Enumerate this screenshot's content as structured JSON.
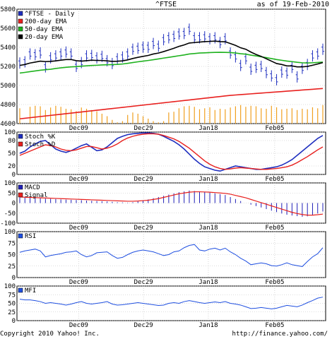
{
  "header": {
    "symbol_title": "^FTSE",
    "as_of": "as of 19-Feb-2010"
  },
  "footer": {
    "copyright": "Copyright 2010 Yahoo! Inc.",
    "url": "http://finance.yahoo.com/"
  },
  "colors": {
    "price": "#1f2fbf",
    "ema200": "#e8201e",
    "ema50": "#1fb21f",
    "ema20": "#000000",
    "volume": "#f0a020",
    "stoch_k": "#1f2fbf",
    "stoch_d": "#e8201e",
    "macd_bar": "#2020b8",
    "macd_signal": "#e8201e",
    "rsi": "#1f4fe0",
    "mfi": "#1f4fe0"
  },
  "date_labels": [
    "Dec09",
    "Dec29",
    "Jan18",
    "Feb05"
  ],
  "chart_data": [
    {
      "type": "line",
      "title": "^FTSE",
      "series": [
        {
          "name": "^FTSE - Daily",
          "values": [
            5235,
            5248,
            5330,
            5322,
            5341,
            5195,
            5290,
            5310,
            5330,
            5350,
            5330,
            5200,
            5240,
            5310,
            5315,
            5290,
            5305,
            5260,
            5230,
            5280,
            5298,
            5330,
            5380,
            5390,
            5402,
            5400,
            5440,
            5412,
            5480,
            5500,
            5515,
            5540,
            5545,
            5590,
            5500,
            5500,
            5510,
            5490,
            5500,
            5450,
            5490,
            5340,
            5300,
            5210,
            5280,
            5170,
            5190,
            5200,
            5135,
            5100,
            5060,
            5140,
            5130,
            5190,
            5090,
            5180,
            5220,
            5310,
            5330,
            5380
          ]
        },
        {
          "name": "200-day EMA",
          "values": [
            4650,
            4656,
            4662,
            4668,
            4674,
            4680,
            4686,
            4692,
            4698,
            4704,
            4710,
            4716,
            4722,
            4728,
            4734,
            4740,
            4746,
            4752,
            4758,
            4764,
            4770,
            4776,
            4782,
            4788,
            4794,
            4800,
            4806,
            4812,
            4818,
            4824,
            4830,
            4836,
            4842,
            4848,
            4854,
            4860,
            4866,
            4872,
            4878,
            4884,
            4890,
            4896,
            4900,
            4904,
            4908,
            4912,
            4916,
            4920,
            4924,
            4928,
            4932,
            4936,
            4940,
            4944,
            4948,
            4952,
            4956,
            4960,
            4964,
            4968
          ]
        },
        {
          "name": "50-day EMA",
          "values": [
            5130,
            5137,
            5145,
            5152,
            5160,
            5165,
            5170,
            5178,
            5185,
            5190,
            5195,
            5198,
            5202,
            5206,
            5210,
            5212,
            5215,
            5217,
            5219,
            5221,
            5225,
            5232,
            5240,
            5248,
            5255,
            5262,
            5270,
            5278,
            5287,
            5295,
            5303,
            5312,
            5320,
            5330,
            5335,
            5340,
            5342,
            5345,
            5347,
            5348,
            5347,
            5345,
            5340,
            5333,
            5328,
            5318,
            5310,
            5300,
            5292,
            5282,
            5272,
            5264,
            5256,
            5250,
            5243,
            5238,
            5236,
            5238,
            5241,
            5245
          ]
        },
        {
          "name": "20-day EMA",
          "values": [
            5210,
            5220,
            5235,
            5245,
            5255,
            5250,
            5252,
            5258,
            5265,
            5272,
            5272,
            5260,
            5255,
            5260,
            5265,
            5262,
            5262,
            5258,
            5252,
            5254,
            5258,
            5268,
            5283,
            5295,
            5305,
            5315,
            5330,
            5340,
            5355,
            5372,
            5390,
            5410,
            5425,
            5445,
            5450,
            5455,
            5460,
            5462,
            5465,
            5460,
            5458,
            5440,
            5420,
            5395,
            5380,
            5350,
            5325,
            5305,
            5280,
            5255,
            5230,
            5220,
            5205,
            5205,
            5195,
            5195,
            5200,
            5212,
            5225,
            5240
          ]
        }
      ],
      "volume": [
        0.62,
        0.0,
        0.68,
        0.72,
        0.7,
        0.55,
        0.65,
        0.72,
        0.68,
        0.6,
        0.58,
        0.5,
        0.65,
        0.6,
        0.55,
        0.5,
        0.4,
        0.3,
        0.15,
        0.05,
        0.1,
        0.35,
        0.45,
        0.4,
        0.3,
        0.2,
        0.1,
        0.05,
        0.1,
        0.45,
        0.48,
        0.62,
        0.7,
        0.72,
        0.68,
        0.58,
        0.62,
        0.66,
        0.55,
        0.6,
        0.58,
        0.65,
        0.7,
        0.75,
        0.68,
        0.72,
        0.7,
        0.62,
        0.6,
        0.72,
        0.66,
        0.58,
        0.6,
        0.62,
        0.55,
        0.6,
        0.58,
        0.66,
        0.62,
        0.75
      ],
      "ylim": [
        4600,
        5800
      ],
      "yticks": [
        4600,
        4800,
        5000,
        5200,
        5400,
        5600,
        5800
      ],
      "grid": true,
      "legend": "top-left"
    },
    {
      "type": "line",
      "series": [
        {
          "name": "Stoch %K",
          "values": [
            50,
            55,
            65,
            72,
            78,
            80,
            70,
            60,
            55,
            52,
            56,
            62,
            68,
            72,
            64,
            56,
            58,
            65,
            75,
            85,
            90,
            94,
            96,
            97,
            98,
            98,
            97,
            95,
            90,
            84,
            78,
            70,
            60,
            48,
            36,
            26,
            18,
            14,
            10,
            8,
            12,
            16,
            20,
            18,
            16,
            14,
            12,
            12,
            14,
            16,
            18,
            22,
            28,
            35,
            45,
            55,
            65,
            75,
            85,
            92
          ]
        },
        {
          "name": "Stoch %D",
          "values": [
            45,
            50,
            55,
            60,
            65,
            70,
            68,
            65,
            60,
            57,
            56,
            58,
            62,
            66,
            66,
            63,
            60,
            62,
            66,
            72,
            80,
            86,
            90,
            93,
            95,
            96,
            96,
            95,
            92,
            88,
            84,
            78,
            70,
            62,
            52,
            42,
            32,
            24,
            18,
            14,
            12,
            13,
            15,
            16,
            15,
            14,
            13,
            12,
            12,
            13,
            14,
            16,
            18,
            22,
            28,
            35,
            42,
            50,
            58,
            65
          ]
        }
      ],
      "ylim": [
        0,
        100
      ],
      "yticks": [
        0,
        20,
        50,
        80,
        100
      ],
      "grid": true,
      "legend": "top-left"
    },
    {
      "type": "line",
      "series": [
        {
          "name": "MACD",
          "values": [
            28,
            27,
            26,
            25,
            24,
            22,
            21,
            20,
            18,
            17,
            16,
            15,
            14,
            12,
            11,
            10,
            9,
            8,
            6,
            4,
            3,
            2,
            4,
            8,
            14,
            18,
            24,
            30,
            36,
            42,
            48,
            54,
            58,
            62,
            60,
            58,
            56,
            52,
            48,
            44,
            40,
            30,
            20,
            10,
            0,
            -8,
            -15,
            -22,
            -30,
            -38,
            -45,
            -52,
            -58,
            -62,
            -65,
            -68,
            -66,
            -60,
            -52,
            -42
          ]
        },
        {
          "name": "Signal",
          "values": [
            30,
            29,
            28,
            27,
            26,
            25,
            24,
            23,
            22,
            21,
            20,
            19,
            18,
            17,
            16,
            15,
            14,
            13,
            12,
            11,
            10,
            9,
            9,
            10,
            12,
            14,
            18,
            22,
            28,
            34,
            40,
            46,
            50,
            54,
            56,
            56,
            55,
            54,
            52,
            50,
            48,
            44,
            38,
            32,
            26,
            18,
            10,
            2,
            -6,
            -14,
            -22,
            -30,
            -38,
            -46,
            -52,
            -57,
            -60,
            -60,
            -58,
            -55
          ]
        }
      ],
      "ylim": [
        -100,
        100
      ],
      "yticks": [
        -100,
        -50,
        0,
        50,
        100
      ],
      "grid": true,
      "legend": "top-left"
    },
    {
      "type": "line",
      "series": [
        {
          "name": "RSI",
          "values": [
            55,
            58,
            60,
            62,
            58,
            45,
            48,
            50,
            52,
            55,
            56,
            58,
            50,
            45,
            48,
            54,
            55,
            56,
            48,
            42,
            44,
            50,
            55,
            58,
            60,
            58,
            56,
            52,
            48,
            50,
            56,
            58,
            65,
            70,
            72,
            60,
            58,
            62,
            64,
            60,
            64,
            56,
            50,
            42,
            36,
            28,
            30,
            32,
            30,
            26,
            25,
            28,
            32,
            28,
            26,
            24,
            35,
            45,
            52,
            65
          ]
        }
      ],
      "ylim": [
        0,
        100
      ],
      "yticks": [
        0,
        25,
        50,
        75,
        100
      ],
      "grid": true,
      "legend": "top-left"
    },
    {
      "type": "line",
      "series": [
        {
          "name": "MFI",
          "values": [
            62,
            60,
            60,
            58,
            55,
            50,
            52,
            50,
            48,
            45,
            48,
            52,
            55,
            50,
            48,
            50,
            52,
            55,
            48,
            45,
            46,
            48,
            50,
            52,
            50,
            48,
            46,
            44,
            45,
            50,
            52,
            50,
            55,
            58,
            55,
            52,
            50,
            52,
            54,
            52,
            55,
            50,
            48,
            45,
            40,
            35,
            36,
            38,
            36,
            34,
            36,
            40,
            44,
            42,
            40,
            45,
            52,
            58,
            65,
            68
          ]
        }
      ],
      "ylim": [
        0,
        100
      ],
      "yticks": [
        0,
        25,
        50,
        75,
        100
      ],
      "grid": true,
      "legend": "top-left"
    }
  ]
}
